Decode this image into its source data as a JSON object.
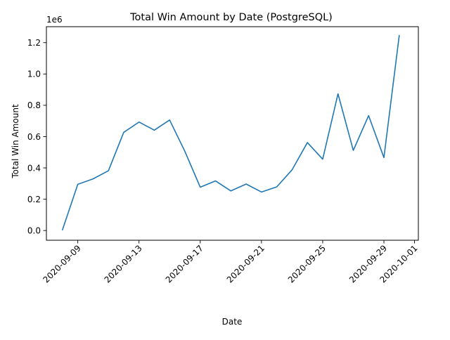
{
  "chart_data": {
    "type": "line",
    "title": "Total Win Amount by Date (PostgreSQL)",
    "xlabel": "Date",
    "ylabel": "Total Win Amount",
    "y_offset_label": "1e6",
    "grid": false,
    "legend": "none",
    "xlim": [
      "2020-09-06T22:48",
      "2020-10-01T06:00"
    ],
    "ylim": [
      -0.062,
      1.302
    ],
    "x_ticks": [
      "2020-09-09",
      "2020-09-13",
      "2020-09-17",
      "2020-09-21",
      "2020-09-25",
      "2020-09-29",
      "2020-10-01"
    ],
    "y_ticks": [
      {
        "value": 0.0,
        "label": "0.0"
      },
      {
        "value": 0.2,
        "label": "0.2"
      },
      {
        "value": 0.4,
        "label": "0.4"
      },
      {
        "value": 0.6,
        "label": "0.6"
      },
      {
        "value": 0.8,
        "label": "0.8"
      },
      {
        "value": 1.0,
        "label": "1.0"
      },
      {
        "value": 1.2,
        "label": "1.2"
      }
    ],
    "series": [
      {
        "color": "#1f77b4",
        "x": [
          "2020-09-08",
          "2020-09-09",
          "2020-09-10",
          "2020-09-11",
          "2020-09-12",
          "2020-09-13",
          "2020-09-14",
          "2020-09-15",
          "2020-09-16",
          "2020-09-17",
          "2020-09-18",
          "2020-09-19",
          "2020-09-20",
          "2020-09-21",
          "2020-09-22",
          "2020-09-23",
          "2020-09-24",
          "2020-09-25",
          "2020-09-26",
          "2020-09-27",
          "2020-09-28",
          "2020-09-29",
          "2020-09-30"
        ],
        "values": [
          0.005,
          0.295,
          0.33,
          0.382,
          0.627,
          0.693,
          0.641,
          0.706,
          0.505,
          0.277,
          0.317,
          0.253,
          0.297,
          0.246,
          0.279,
          0.388,
          0.562,
          0.456,
          0.873,
          0.512,
          0.734,
          0.466,
          1.245
        ]
      }
    ]
  }
}
